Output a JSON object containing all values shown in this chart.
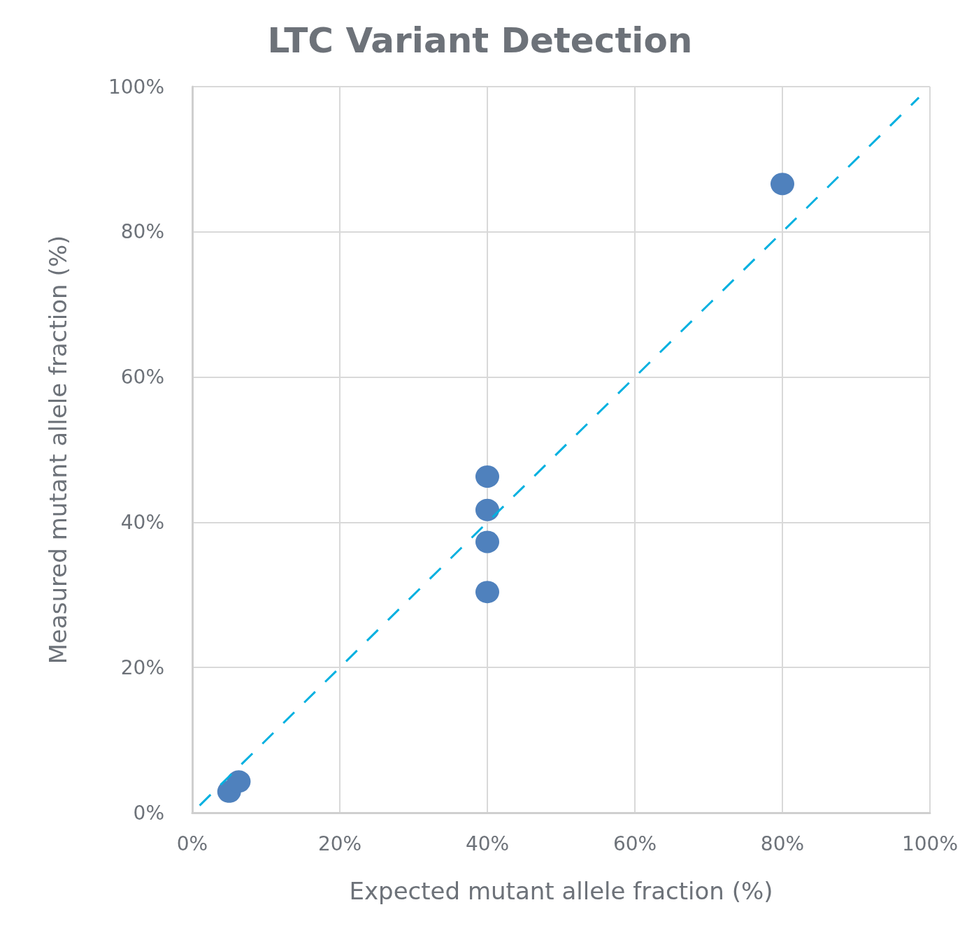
{
  "chart_data": {
    "type": "scatter",
    "title": "LTC Variant Detection",
    "xlabel": "Expected mutant allele fraction (%)",
    "ylabel": "Measured mutant allele fraction (%)",
    "xlim": [
      0,
      100
    ],
    "ylim": [
      0,
      100
    ],
    "xticks": [
      {
        "value": 0,
        "label": "0%"
      },
      {
        "value": 20,
        "label": "20%"
      },
      {
        "value": 40,
        "label": "40%"
      },
      {
        "value": 60,
        "label": "60%"
      },
      {
        "value": 80,
        "label": "80%"
      },
      {
        "value": 100,
        "label": "100%"
      }
    ],
    "yticks": [
      {
        "value": 0,
        "label": "0%"
      },
      {
        "value": 20,
        "label": "20%"
      },
      {
        "value": 40,
        "label": "40%"
      },
      {
        "value": 60,
        "label": "60%"
      },
      {
        "value": 80,
        "label": "80%"
      },
      {
        "value": 100,
        "label": "100%"
      }
    ],
    "grid": true,
    "marker": "circle",
    "series": [
      {
        "color": "#4f81bd",
        "x": [
          5,
          6.3,
          40,
          40,
          40,
          40,
          80
        ],
        "values": [
          2.9,
          4.3,
          46.3,
          41.7,
          37.3,
          30.4,
          86.6
        ]
      },
      {
        "type": "line",
        "color": "#00b0e0",
        "line_style": "dashed",
        "marker": "none",
        "x": [
          1,
          98.5
        ],
        "values": [
          1,
          98.5
        ]
      }
    ]
  }
}
